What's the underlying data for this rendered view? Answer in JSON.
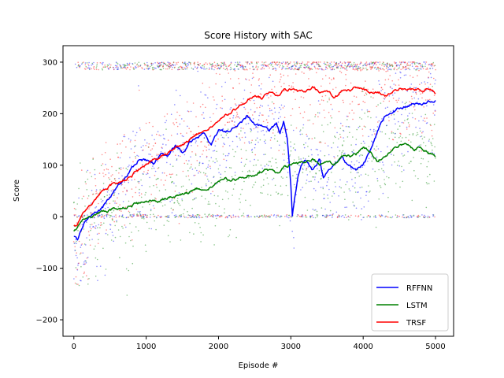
{
  "chart_data": {
    "type": "line",
    "title": "Score History with SAC",
    "xlabel": "Episode #",
    "ylabel": "Score",
    "xlim": [
      -150,
      5250
    ],
    "ylim": [
      -232,
      332
    ],
    "xticks": [
      0,
      1000,
      2000,
      3000,
      4000,
      5000
    ],
    "yticks": [
      -200,
      -100,
      0,
      100,
      200,
      300
    ],
    "xtick_labels": [
      "0",
      "1000",
      "2000",
      "3000",
      "4000",
      "5000"
    ],
    "ytick_labels": [
      "−200",
      "−100",
      "0",
      "100",
      "200",
      "300"
    ],
    "grid": false,
    "legend_position": "lower-right",
    "scatter_overlay": "raw per-episode scores shown as small semi-transparent dots behind each smoothed line",
    "series": [
      {
        "name": "RFFNN",
        "color": "#0000ff",
        "x": [
          0,
          50,
          100,
          150,
          200,
          300,
          400,
          500,
          600,
          700,
          800,
          900,
          1000,
          1100,
          1200,
          1300,
          1400,
          1500,
          1600,
          1700,
          1800,
          1900,
          2000,
          2100,
          2200,
          2300,
          2400,
          2450,
          2500,
          2600,
          2700,
          2800,
          2850,
          2900,
          2950,
          3000,
          3020,
          3050,
          3100,
          3150,
          3200,
          3300,
          3400,
          3450,
          3500,
          3600,
          3700,
          3800,
          3900,
          4000,
          4100,
          4200,
          4300,
          4400,
          4500,
          4600,
          4700,
          4800,
          4900,
          5000
        ],
        "y": [
          -40,
          -45,
          -30,
          -10,
          -5,
          10,
          20,
          40,
          55,
          75,
          95,
          112,
          110,
          105,
          125,
          120,
          135,
          125,
          145,
          150,
          160,
          140,
          168,
          165,
          170,
          180,
          195,
          185,
          180,
          175,
          165,
          180,
          160,
          185,
          150,
          60,
          0,
          30,
          80,
          100,
          110,
          90,
          110,
          75,
          90,
          100,
          115,
          95,
          90,
          100,
          130,
          165,
          195,
          205,
          210,
          215,
          220,
          218,
          222,
          225
        ]
      },
      {
        "name": "LSTM",
        "color": "#008000",
        "x": [
          0,
          50,
          100,
          150,
          200,
          300,
          400,
          500,
          600,
          700,
          800,
          900,
          1000,
          1100,
          1200,
          1300,
          1400,
          1500,
          1600,
          1700,
          1800,
          1900,
          2000,
          2100,
          2200,
          2300,
          2400,
          2500,
          2600,
          2700,
          2800,
          2900,
          3000,
          3100,
          3200,
          3300,
          3400,
          3500,
          3600,
          3700,
          3800,
          3900,
          4000,
          4100,
          4200,
          4300,
          4400,
          4500,
          4600,
          4700,
          4800,
          4900,
          5000
        ],
        "y": [
          -30,
          -20,
          -10,
          -5,
          0,
          5,
          10,
          12,
          15,
          18,
          22,
          25,
          28,
          30,
          33,
          38,
          40,
          45,
          48,
          55,
          50,
          58,
          68,
          72,
          70,
          75,
          78,
          80,
          88,
          90,
          85,
          95,
          102,
          100,
          105,
          110,
          100,
          108,
          100,
          115,
          118,
          120,
          135,
          125,
          110,
          120,
          128,
          138,
          140,
          132,
          135,
          125,
          120
        ]
      },
      {
        "name": "TRSF",
        "color": "#ff0000",
        "x": [
          0,
          50,
          100,
          150,
          200,
          300,
          400,
          500,
          600,
          700,
          800,
          900,
          1000,
          1100,
          1200,
          1300,
          1400,
          1500,
          1600,
          1700,
          1800,
          1900,
          2000,
          2100,
          2200,
          2300,
          2400,
          2500,
          2600,
          2700,
          2800,
          2900,
          3000,
          3100,
          3200,
          3300,
          3400,
          3500,
          3600,
          3700,
          3800,
          3900,
          4000,
          4100,
          4200,
          4300,
          4400,
          4500,
          4600,
          4700,
          4800,
          4900,
          5000
        ],
        "y": [
          -20,
          -15,
          0,
          10,
          20,
          35,
          50,
          60,
          65,
          72,
          80,
          90,
          100,
          110,
          118,
          125,
          135,
          140,
          150,
          160,
          165,
          175,
          185,
          195,
          205,
          215,
          225,
          235,
          230,
          240,
          235,
          245,
          248,
          240,
          242,
          250,
          240,
          245,
          230,
          242,
          245,
          250,
          248,
          240,
          245,
          238,
          240,
          248,
          245,
          250,
          245,
          250,
          242
        ]
      }
    ]
  }
}
